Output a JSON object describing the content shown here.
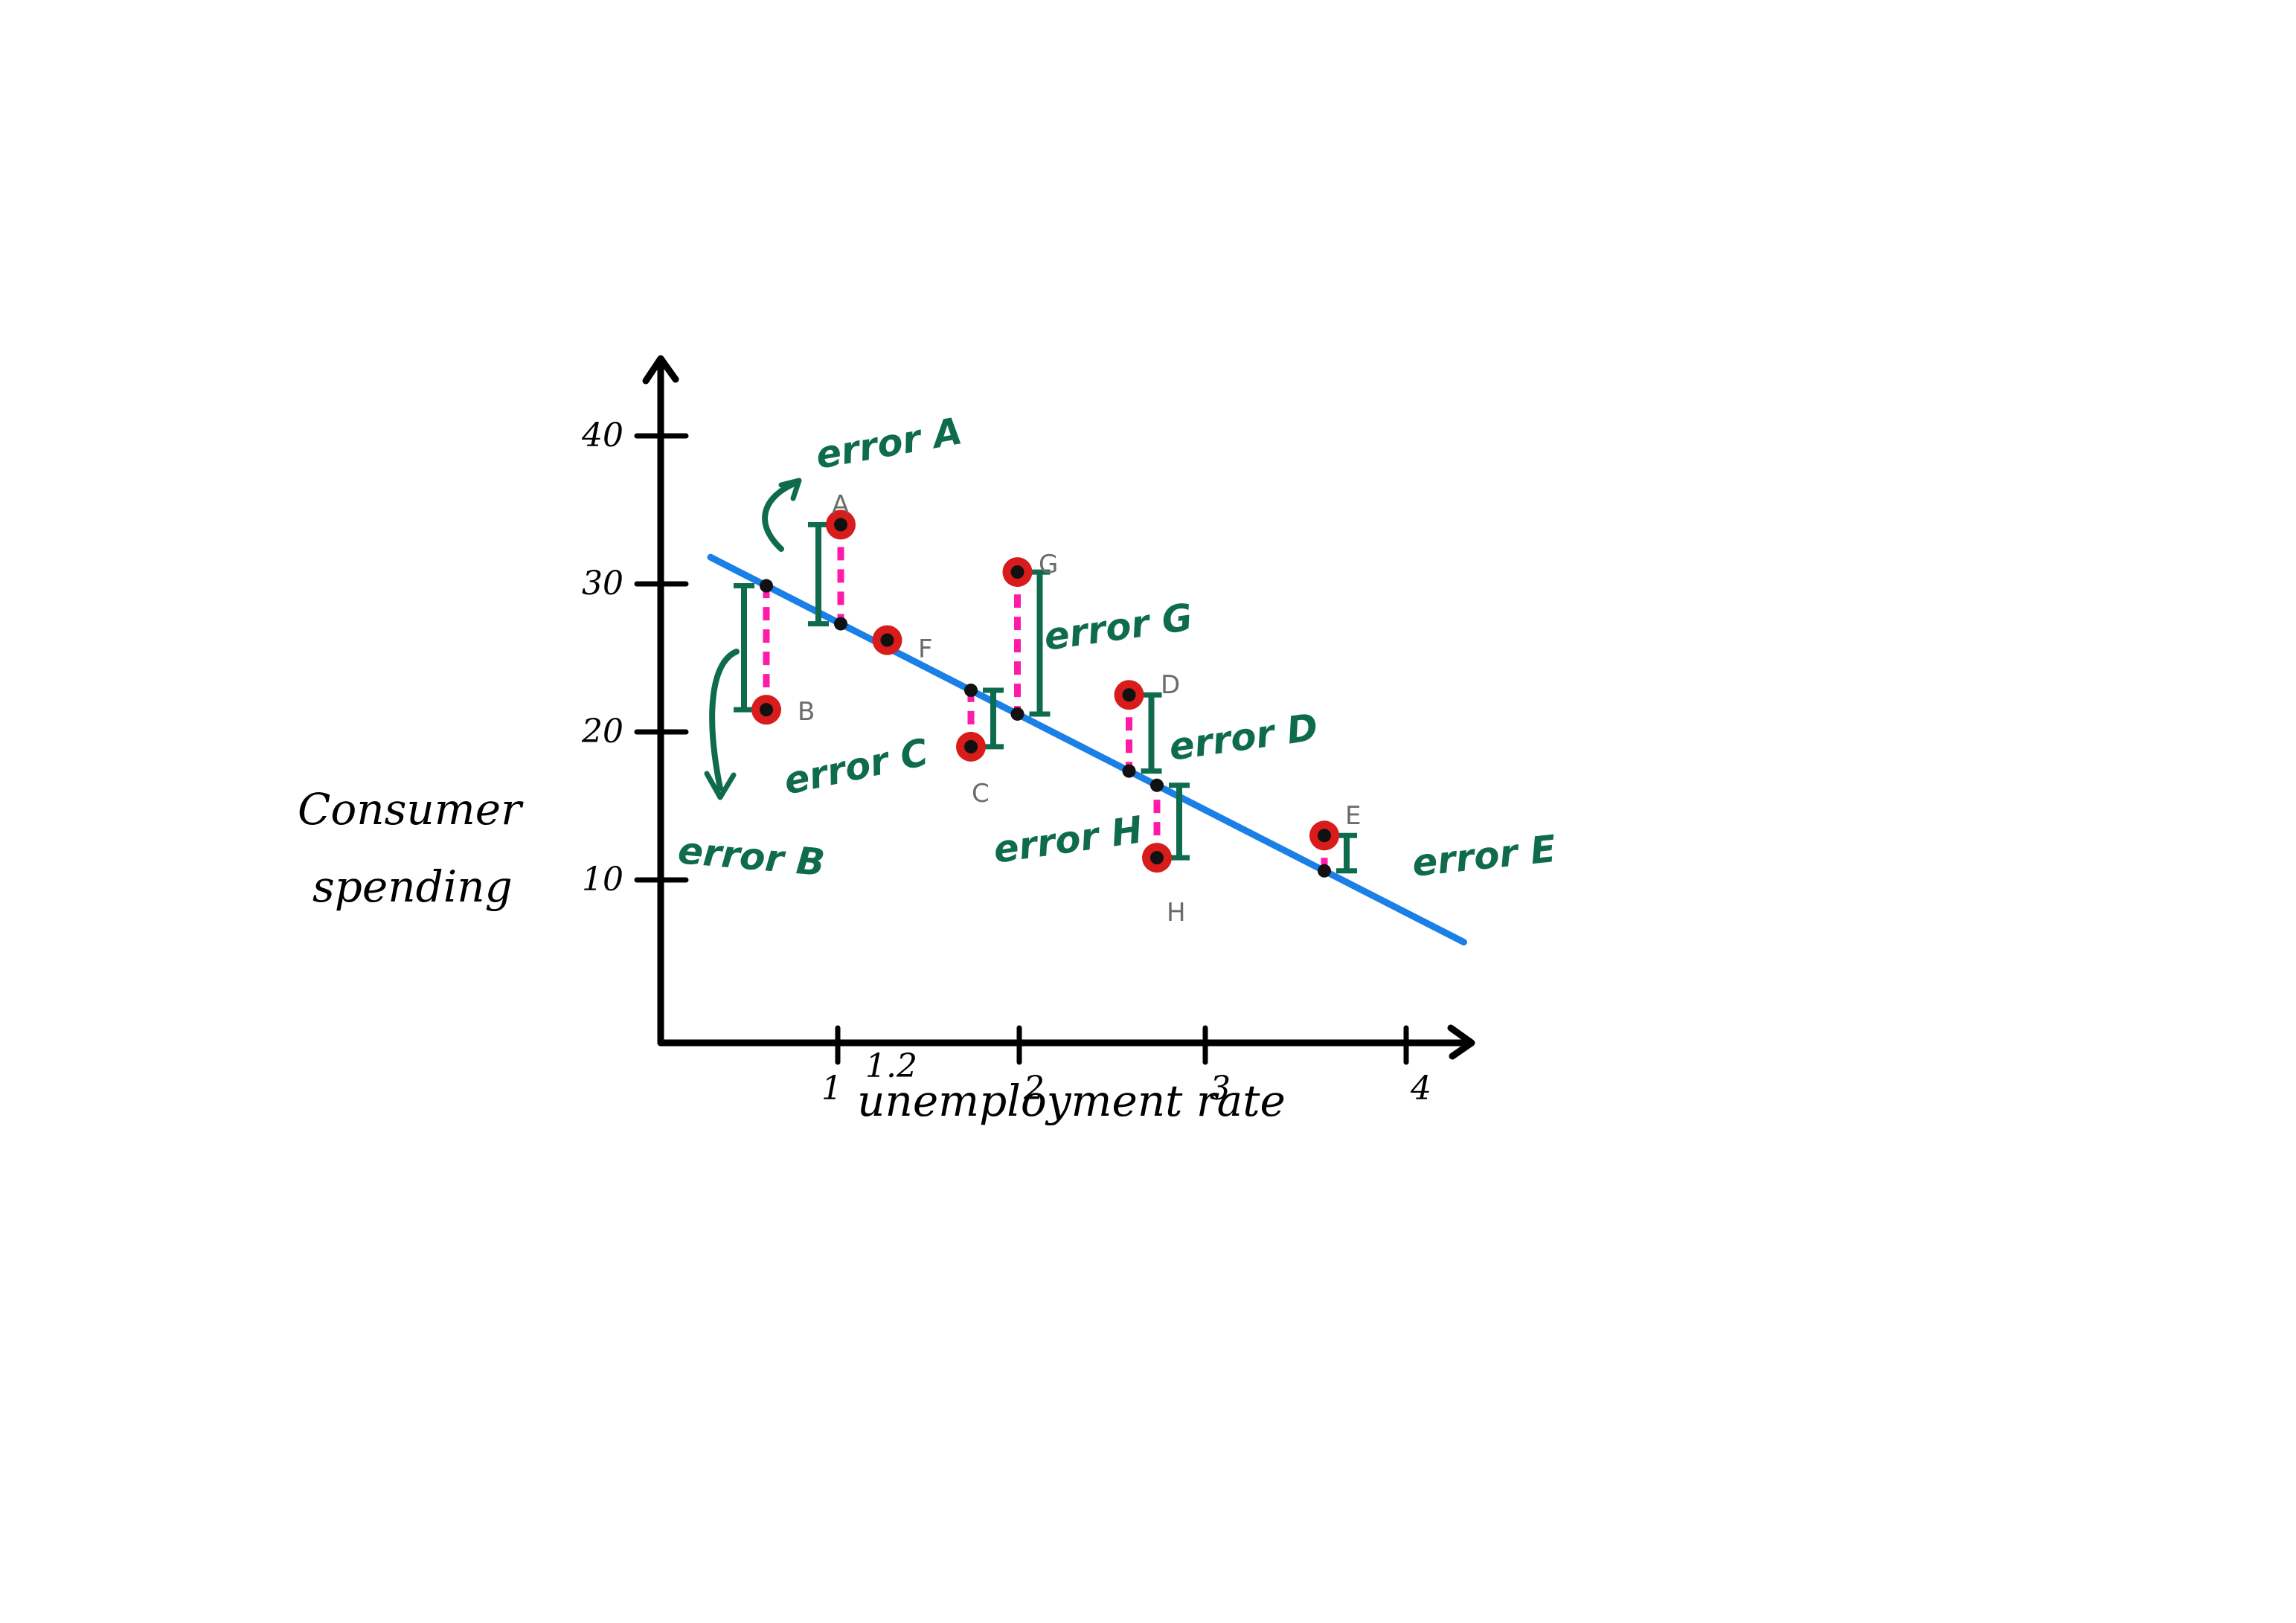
{
  "chart_data": {
    "type": "scatter",
    "title": "",
    "xlabel": "unemployment rate",
    "ylabel_lines": [
      "Consumer",
      "spending"
    ],
    "x_ticks": [
      {
        "value": 1,
        "label": "1"
      },
      {
        "value": 2,
        "label": "2"
      },
      {
        "value": 3,
        "label": "3"
      },
      {
        "value": 4,
        "label": "4"
      }
    ],
    "x_extra_tick_label": {
      "value": 1.2,
      "label": "1.2"
    },
    "y_ticks": [
      {
        "value": 10,
        "label": "10"
      },
      {
        "value": 20,
        "label": "20"
      },
      {
        "value": 30,
        "label": "30"
      },
      {
        "value": 40,
        "label": "40"
      }
    ],
    "xlim": [
      0,
      4.3
    ],
    "ylim": [
      -1,
      46
    ],
    "regression_line": {
      "x_start": 0.3,
      "y_start": 31.8,
      "x_end": 4.35,
      "y_end": 5.8
    },
    "points": [
      {
        "name": "A",
        "x": 1.0,
        "y": 34.0
      },
      {
        "name": "B",
        "x": 0.6,
        "y": 21.5
      },
      {
        "name": "C",
        "x": 1.7,
        "y": 19.0
      },
      {
        "name": "D",
        "x": 2.55,
        "y": 22.5
      },
      {
        "name": "E",
        "x": 3.6,
        "y": 13.0
      },
      {
        "name": "F",
        "x": 1.25,
        "y": 26.2
      },
      {
        "name": "G",
        "x": 1.95,
        "y": 30.8
      },
      {
        "name": "H",
        "x": 2.7,
        "y": 11.5
      }
    ],
    "error_labels": {
      "A": "error A",
      "B": "error B",
      "C": "error C",
      "D": "error D",
      "E": "error E",
      "G": "error G",
      "H": "error H"
    },
    "colors": {
      "axis": "#000000",
      "line": "#1a7fe6",
      "residual": "#ff1aa8",
      "point_fill": "#d81b1b",
      "point_center": "#111111",
      "error_annotation": "#0f6b4e",
      "point_label": "#6b6b6b"
    }
  }
}
